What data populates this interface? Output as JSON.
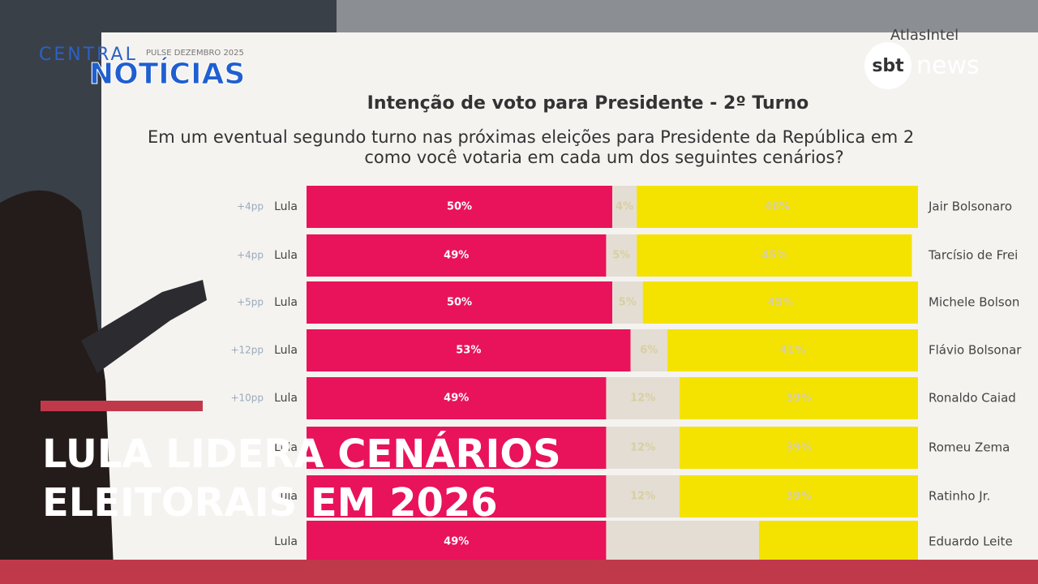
{
  "brand": {
    "show_top": "CENTRAL",
    "show_bottom": "NOTÍCIAS",
    "channel_logo": "sbt",
    "channel_name": "news",
    "source": "AtlasIntel"
  },
  "headline": {
    "line1": "LULA LIDERA CENÁRIOS",
    "line2": "ELEITORAIS EM 2026"
  },
  "chart_data": {
    "type": "bar",
    "orientation": "horizontal",
    "stacked": true,
    "title": "Intenção de voto para Presidente - 2º Turno",
    "subtitle": [
      "Em um eventual segundo turno nas próximas eleições para Presidente da República em 2",
      "como você votaria em cada um dos seguintes cenários?"
    ],
    "categories": [
      "Jair Bolsonaro",
      "Tarcísio de Frei",
      "Michele Bolson",
      "Flávio Bolsonar",
      "Ronaldo Caiad",
      "Romeu Zema",
      "Ratinho Jr.",
      "Eduardo Leite"
    ],
    "left_labels": [
      "Lula",
      "Lula",
      "Lula",
      "Lula",
      "Lula",
      "Lula",
      "Lula",
      "Lula"
    ],
    "margins": [
      "+4pp",
      "+4pp",
      "+5pp",
      "+12pp",
      "+10pp",
      null,
      null,
      null
    ],
    "xlim": [
      0,
      100
    ],
    "series": [
      {
        "color": "#e8135a",
        "values": [
          50,
          49,
          50,
          53,
          49,
          49,
          49,
          49
        ],
        "value_labels": [
          "50%",
          "49%",
          "50%",
          "53%",
          "49%",
          null,
          null,
          "49%"
        ]
      },
      {
        "color": "#e4ddd4",
        "values": [
          4,
          5,
          5,
          6,
          12,
          12,
          12,
          25
        ],
        "value_labels": [
          "4%",
          "5%",
          "5%",
          "6%",
          "12%",
          "12%",
          "12%",
          null
        ]
      },
      {
        "color": "#f4e300",
        "values": [
          46,
          45,
          45,
          41,
          39,
          39,
          39,
          26
        ],
        "value_labels": [
          "46%",
          "45%",
          "45%",
          "41%",
          "39%",
          "39%",
          "39%",
          null
        ]
      }
    ]
  }
}
